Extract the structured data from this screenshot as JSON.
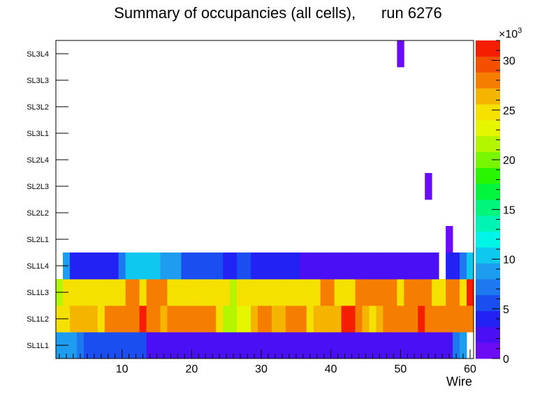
{
  "chart_data": {
    "type": "heatmap",
    "title": "Summary of occupancies (all cells),      run 6276",
    "xlabel": "Wire",
    "ylabel": "",
    "xlim": [
      0.5,
      60.5
    ],
    "x_ticks": [
      10,
      20,
      30,
      40,
      50,
      60
    ],
    "y_categories": [
      "SL1L1",
      "SL1L2",
      "SL1L3",
      "SL1L4",
      "SL2L1",
      "SL2L2",
      "SL2L3",
      "SL2L4",
      "SL3L1",
      "SL3L2",
      "SL3L3",
      "SL3L4"
    ],
    "color_scale": {
      "min": 0,
      "max": 32000,
      "multiplier_label": "×10",
      "multiplier_exponent": "3",
      "ticks": [
        0,
        5,
        10,
        15,
        20,
        25,
        30
      ],
      "palette": [
        "#6b0cf5",
        "#4a0ff5",
        "#2222f5",
        "#1a4ef0",
        "#1e78f0",
        "#1e9cf0",
        "#0fc8f0",
        "#00f5e6",
        "#00f5b4",
        "#00f57d",
        "#00f53c",
        "#28f500",
        "#78f500",
        "#b4f500",
        "#e6f500",
        "#f5e100",
        "#f5b400",
        "#f57d00",
        "#f55000",
        "#f51e00"
      ]
    },
    "rows": [
      {
        "name": "SL1L1",
        "values": [
          8000,
          8000,
          8000,
          6500,
          5000,
          5000,
          5000,
          5000,
          5000,
          5000,
          5000,
          5000,
          5000,
          3000,
          3000,
          3000,
          3000,
          3000,
          3000,
          3000,
          3000,
          3000,
          3000,
          3000,
          2500,
          2500,
          3000,
          3000,
          2500,
          2500,
          2500,
          2000,
          2000,
          2000,
          2000,
          2000,
          2000,
          2000,
          2000,
          2000,
          2000,
          2000,
          3000,
          3000,
          2000,
          2000,
          2000,
          2000,
          2000,
          2000,
          2000,
          3000,
          2000,
          2000,
          2000,
          2000,
          3000,
          6500,
          8000,
          0
        ]
      },
      {
        "name": "SL1L2",
        "values": [
          24000,
          24000,
          26000,
          26000,
          26000,
          26000,
          25000,
          28000,
          28000,
          28000,
          28000,
          28000,
          31000,
          28000,
          28000,
          26000,
          28000,
          28000,
          28000,
          28000,
          28000,
          28000,
          28000,
          25000,
          22000,
          22000,
          23000,
          23000,
          26000,
          28000,
          28000,
          26000,
          26000,
          28000,
          28000,
          28000,
          25000,
          26000,
          26000,
          26000,
          26000,
          31000,
          31000,
          28000,
          26000,
          24000,
          26000,
          28000,
          28000,
          28000,
          28000,
          28000,
          31000,
          28000,
          28000,
          28000,
          28000,
          28000,
          28000,
          28000
        ]
      },
      {
        "name": "SL1L3",
        "values": [
          22000,
          24000,
          25000,
          25000,
          25000,
          25000,
          25000,
          25000,
          25000,
          25000,
          28000,
          28000,
          25000,
          28000,
          28000,
          28000,
          25000,
          25000,
          25000,
          25000,
          25000,
          25000,
          25000,
          25000,
          24000,
          22000,
          25000,
          25000,
          25000,
          25000,
          25000,
          25000,
          25000,
          25000,
          25000,
          25000,
          25000,
          25000,
          28000,
          28000,
          25000,
          25000,
          25000,
          28000,
          28000,
          28000,
          28000,
          28000,
          28000,
          25000,
          28000,
          28000,
          28000,
          28000,
          25000,
          25000,
          28000,
          28000,
          25000,
          31000
        ]
      },
      {
        "name": "SL1L4",
        "values": [
          0,
          8000,
          4500,
          4500,
          4500,
          4500,
          4500,
          4500,
          4500,
          7000,
          10000,
          10000,
          10000,
          10000,
          10000,
          8000,
          8000,
          8000,
          5500,
          5500,
          5500,
          5500,
          5500,
          5500,
          4500,
          4500,
          5500,
          5500,
          4500,
          4500,
          4500,
          4500,
          4500,
          4500,
          4500,
          2500,
          2500,
          2500,
          2500,
          2500,
          2500,
          2500,
          2500,
          2500,
          2500,
          2500,
          2500,
          2500,
          2500,
          2500,
          2500,
          2500,
          2500,
          2500,
          2500,
          0,
          4500,
          4500,
          7000,
          10000
        ]
      },
      {
        "name": "SL2L1",
        "values": [
          0,
          0,
          0,
          0,
          0,
          0,
          0,
          0,
          0,
          0,
          0,
          0,
          0,
          0,
          0,
          0,
          0,
          0,
          0,
          0,
          0,
          0,
          0,
          0,
          0,
          0,
          0,
          0,
          0,
          0,
          0,
          0,
          0,
          0,
          0,
          0,
          0,
          0,
          0,
          0,
          0,
          0,
          0,
          0,
          0,
          0,
          0,
          0,
          0,
          0,
          0,
          0,
          0,
          0,
          0,
          0,
          1000,
          0,
          0,
          0
        ]
      },
      {
        "name": "SL2L2",
        "values": [
          0,
          0,
          0,
          0,
          0,
          0,
          0,
          0,
          0,
          0,
          0,
          0,
          0,
          0,
          0,
          0,
          0,
          0,
          0,
          0,
          0,
          0,
          0,
          0,
          0,
          0,
          0,
          0,
          0,
          0,
          0,
          0,
          0,
          0,
          0,
          0,
          0,
          0,
          0,
          0,
          0,
          0,
          0,
          0,
          0,
          0,
          0,
          0,
          0,
          0,
          0,
          0,
          0,
          0,
          0,
          0,
          0,
          0,
          0,
          0
        ]
      },
      {
        "name": "SL2L3",
        "values": [
          0,
          0,
          0,
          0,
          0,
          0,
          0,
          0,
          0,
          0,
          0,
          0,
          0,
          0,
          0,
          0,
          0,
          0,
          0,
          0,
          0,
          0,
          0,
          0,
          0,
          0,
          0,
          0,
          0,
          0,
          0,
          0,
          0,
          0,
          0,
          0,
          0,
          0,
          0,
          0,
          0,
          0,
          0,
          0,
          0,
          0,
          0,
          0,
          0,
          0,
          0,
          0,
          0,
          1000,
          0,
          0,
          0,
          0,
          0,
          0
        ]
      },
      {
        "name": "SL2L4",
        "values": [
          0,
          0,
          0,
          0,
          0,
          0,
          0,
          0,
          0,
          0,
          0,
          0,
          0,
          0,
          0,
          0,
          0,
          0,
          0,
          0,
          0,
          0,
          0,
          0,
          0,
          0,
          0,
          0,
          0,
          0,
          0,
          0,
          0,
          0,
          0,
          0,
          0,
          0,
          0,
          0,
          0,
          0,
          0,
          0,
          0,
          0,
          0,
          0,
          0,
          0,
          0,
          0,
          0,
          0,
          0,
          0,
          0,
          0,
          0,
          0
        ]
      },
      {
        "name": "SL3L1",
        "values": [
          0,
          0,
          0,
          0,
          0,
          0,
          0,
          0,
          0,
          0,
          0,
          0,
          0,
          0,
          0,
          0,
          0,
          0,
          0,
          0,
          0,
          0,
          0,
          0,
          0,
          0,
          0,
          0,
          0,
          0,
          0,
          0,
          0,
          0,
          0,
          0,
          0,
          0,
          0,
          0,
          0,
          0,
          0,
          0,
          0,
          0,
          0,
          0,
          0,
          0,
          0,
          0,
          0,
          0,
          0,
          0,
          0,
          0,
          0,
          0
        ]
      },
      {
        "name": "SL3L2",
        "values": [
          0,
          0,
          0,
          0,
          0,
          0,
          0,
          0,
          0,
          0,
          0,
          0,
          0,
          0,
          0,
          0,
          0,
          0,
          0,
          0,
          0,
          0,
          0,
          0,
          0,
          0,
          0,
          0,
          0,
          0,
          0,
          0,
          0,
          0,
          0,
          0,
          0,
          0,
          0,
          0,
          0,
          0,
          0,
          0,
          0,
          0,
          0,
          0,
          0,
          0,
          0,
          0,
          0,
          0,
          0,
          0,
          0,
          0,
          0,
          0
        ]
      },
      {
        "name": "SL3L3",
        "values": [
          0,
          0,
          0,
          0,
          0,
          0,
          0,
          0,
          0,
          0,
          0,
          0,
          0,
          0,
          0,
          0,
          0,
          0,
          0,
          0,
          0,
          0,
          0,
          0,
          0,
          0,
          0,
          0,
          0,
          0,
          0,
          0,
          0,
          0,
          0,
          0,
          0,
          0,
          0,
          0,
          0,
          0,
          0,
          0,
          0,
          0,
          0,
          0,
          0,
          0,
          0,
          0,
          0,
          0,
          0,
          0,
          0,
          0,
          0,
          0
        ]
      },
      {
        "name": "SL3L4",
        "values": [
          0,
          0,
          0,
          0,
          0,
          0,
          0,
          0,
          0,
          0,
          0,
          0,
          0,
          0,
          0,
          0,
          0,
          0,
          0,
          0,
          0,
          0,
          0,
          0,
          0,
          0,
          0,
          0,
          0,
          0,
          0,
          0,
          0,
          0,
          0,
          0,
          0,
          0,
          0,
          0,
          0,
          0,
          0,
          0,
          0,
          0,
          0,
          0,
          0,
          1000,
          0,
          0,
          0,
          0,
          0,
          0,
          0,
          0,
          0,
          0
        ]
      }
    ]
  }
}
